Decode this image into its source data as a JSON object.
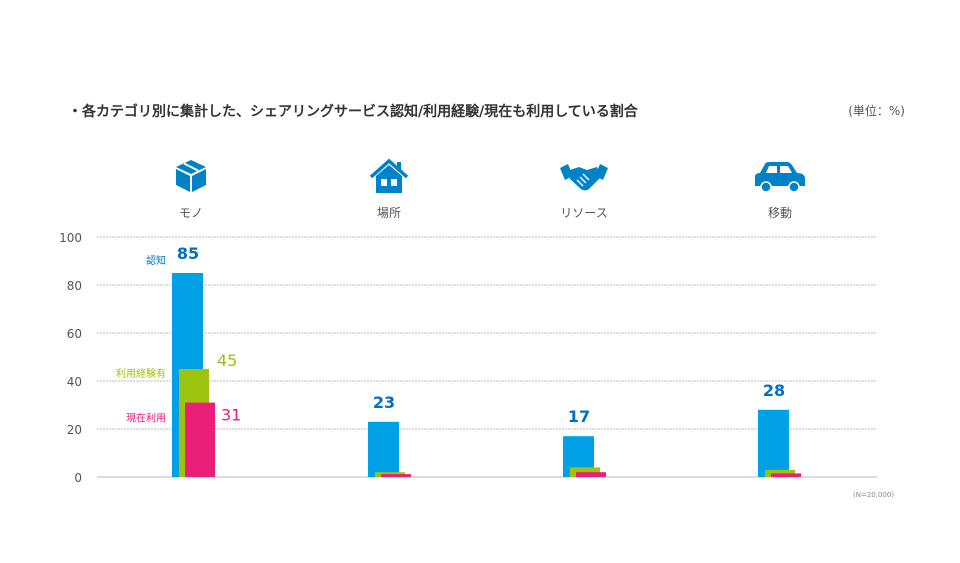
{
  "title": "・各カテゴリ別に集計した、シェアリングサービス認知/利用経験/現在も利用している割合",
  "unit": "(単位：%)",
  "note": "(N=20,000)",
  "categories": [
    {
      "label": "モノ",
      "icon": "box-icon"
    },
    {
      "label": "場所",
      "icon": "house-icon"
    },
    {
      "label": "リソース",
      "icon": "handshake-icon"
    },
    {
      "label": "移動",
      "icon": "car-icon"
    }
  ],
  "colors": {
    "awareness": "#00a0e6",
    "experience": "#9dc30f",
    "current": "#eb1e78",
    "awareness_label": "#0070c0",
    "icon": "#0082c8"
  },
  "chart_data": {
    "type": "bar",
    "categories": [
      "モノ",
      "場所",
      "リソース",
      "移動"
    ],
    "series": [
      {
        "name": "認知",
        "values": [
          85,
          23,
          17,
          28
        ]
      },
      {
        "name": "利用経験有",
        "values": [
          45,
          2,
          4,
          3
        ]
      },
      {
        "name": "現在利用",
        "values": [
          31,
          1.2,
          2,
          1.5
        ]
      }
    ],
    "data_labels": {
      "認知": [
        "85",
        "23",
        "17",
        "28"
      ],
      "利用経験有": [
        "45"
      ],
      "現在利用": [
        "31"
      ]
    },
    "yticks": [
      "0",
      "20",
      "40",
      "60",
      "80",
      "100"
    ],
    "ylim": [
      0,
      100
    ],
    "grid": true,
    "legend": "inline-left-of-first-group"
  }
}
